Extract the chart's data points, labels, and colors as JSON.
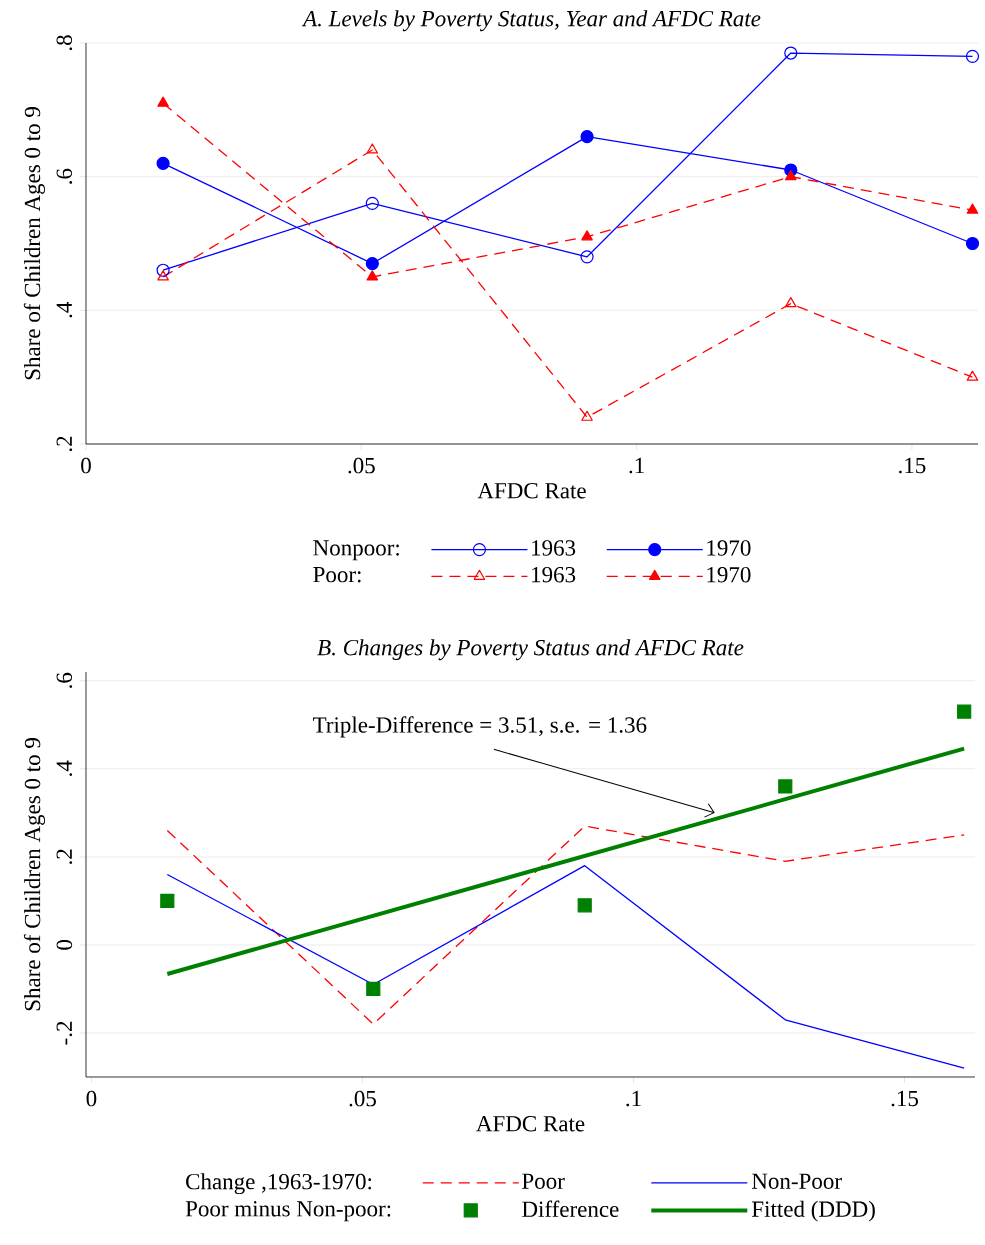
{
  "chart_data": [
    {
      "type": "line",
      "title": "*A. Levels by Poverty Status, Year and AFDC Rate*",
      "xlabel": "AFDC Rate",
      "ylabel": "Share of Children Ages 0 to 9",
      "x": [
        0.014,
        0.052,
        0.091,
        0.128,
        0.161
      ],
      "xlim": [
        0,
        0.162
      ],
      "ylim": [
        0.2,
        0.8
      ],
      "xticks": [
        0,
        {
          "value": 0.05,
          "label": ".05"
        },
        {
          "value": 0.1,
          "label": ".1"
        },
        {
          "value": 0.15,
          "label": ".15"
        }
      ],
      "yticks": [
        {
          "value": 0.2,
          "label": ".2"
        },
        {
          "value": 0.4,
          "label": ".4"
        },
        {
          "value": 0.6,
          "label": ".6"
        },
        {
          "value": 0.8,
          "label": ".8"
        }
      ],
      "grid": "y",
      "legend": "bottom",
      "annotations": [
        "Nonpoor:",
        "Poor:"
      ],
      "series": [
        {
          "name": "1963",
          "color": "#0000ff",
          "line_style": "solid",
          "marker": "circle-open",
          "values": [
            0.46,
            0.56,
            0.48,
            0.785,
            0.78
          ]
        },
        {
          "name": "1970",
          "color": "#0000ff",
          "line_style": "solid",
          "marker": "circle",
          "values": [
            0.62,
            0.47,
            0.66,
            0.61,
            0.5
          ]
        },
        {
          "name": "1963",
          "color": "#ff0000",
          "line_style": "dashed",
          "marker": "triangle-open",
          "values": [
            0.45,
            0.64,
            0.24,
            0.41,
            0.3
          ]
        },
        {
          "name": "1970",
          "color": "#ff0000",
          "line_style": "dashed",
          "marker": "triangle",
          "values": [
            0.71,
            0.45,
            0.51,
            0.6,
            0.55
          ]
        }
      ]
    },
    {
      "type": "line",
      "title": "*B. Changes by Poverty Status and AFDC Rate*",
      "xlabel": "AFDC Rate",
      "ylabel": "Share of Children Ages 0 to 9",
      "x": [
        0.014,
        0.052,
        0.091,
        0.128,
        0.161
      ],
      "xlim": [
        -0.001,
        0.163
      ],
      "ylim": [
        -0.3,
        0.62
      ],
      "xticks": [
        0,
        {
          "value": 0.05,
          "label": ".05"
        },
        {
          "value": 0.1,
          "label": ".1"
        },
        {
          "value": 0.15,
          "label": ".15"
        }
      ],
      "yticks": [
        {
          "value": -0.2,
          "label": "-.2"
        },
        0,
        {
          "value": 0.2,
          "label": ".2"
        },
        {
          "value": 0.4,
          "label": ".4"
        },
        {
          "value": 0.6,
          "label": ".6"
        }
      ],
      "grid": "y",
      "legend": "bottom",
      "annotations": [
        {
          "text": "Triple-Difference = 3.51, s.e. = 1.36",
          "x": 0.115,
          "y": 0.3
        },
        "Change ,1963-1970:",
        "Poor minus Non-poor:"
      ],
      "series": [
        {
          "name": "Poor",
          "color": "#ff0000",
          "line_style": "dashed",
          "values": [
            0.26,
            -0.18,
            0.27,
            0.19,
            0.25
          ]
        },
        {
          "name": "Non-Poor",
          "color": "#0000ff",
          "line_style": "solid",
          "values": [
            0.16,
            -0.09,
            0.18,
            -0.17,
            -0.28
          ]
        },
        {
          "name": "Difference",
          "type": "scatter",
          "color": "#008000",
          "marker": "square",
          "values": [
            0.1,
            -0.1,
            0.09,
            0.36,
            0.53
          ]
        },
        {
          "name": "Fitted (DDD)",
          "type": "line",
          "color": "#008000",
          "line_style": "solid",
          "x": [
            0.014,
            0.161
          ],
          "values": [
            -0.066,
            0.446
          ]
        }
      ]
    }
  ]
}
